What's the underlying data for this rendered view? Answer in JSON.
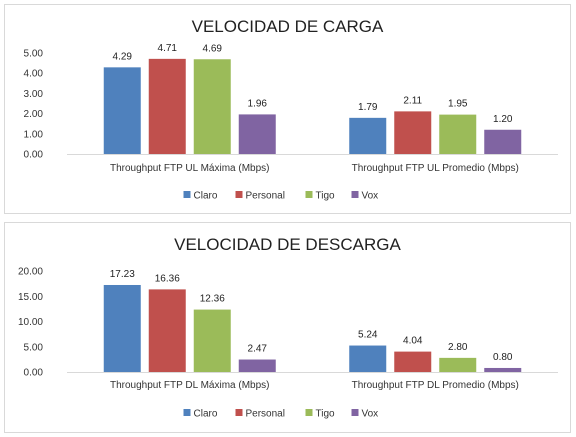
{
  "chart_data": [
    {
      "type": "bar",
      "title": "VELOCIDAD DE CARGA",
      "categories": [
        "Throughput FTP UL Máxima (Mbps)",
        "Throughput FTP UL Promedio (Mbps)"
      ],
      "series": [
        {
          "name": "Claro",
          "color": "#4F81BD",
          "values": [
            4.29,
            1.79
          ],
          "labels": [
            "4.29",
            "1.79"
          ]
        },
        {
          "name": "Personal",
          "color": "#C0504D",
          "values": [
            4.71,
            2.11
          ],
          "labels": [
            "4.71",
            "2.11"
          ]
        },
        {
          "name": "Tigo",
          "color": "#9BBB59",
          "values": [
            4.69,
            1.95
          ],
          "labels": [
            "4.69",
            "1.95"
          ]
        },
        {
          "name": "Vox",
          "color": "#8064A2",
          "values": [
            1.96,
            1.2
          ],
          "labels": [
            "1.96",
            "1.20"
          ]
        }
      ],
      "ylim": [
        0,
        5
      ],
      "yticks": [
        "0.00",
        "1.00",
        "2.00",
        "3.00",
        "4.00",
        "5.00"
      ],
      "grid": false,
      "legend": "bottom"
    },
    {
      "type": "bar",
      "title": "VELOCIDAD DE DESCARGA",
      "categories": [
        "Throughput FTP DL Máxima (Mbps)",
        "Throughput FTP DL Promedio (Mbps)"
      ],
      "series": [
        {
          "name": "Claro",
          "color": "#4F81BD",
          "values": [
            17.23,
            5.24
          ],
          "labels": [
            "17.23",
            "5.24"
          ]
        },
        {
          "name": "Personal",
          "color": "#C0504D",
          "values": [
            16.36,
            4.04
          ],
          "labels": [
            "16.36",
            "4.04"
          ]
        },
        {
          "name": "Tigo",
          "color": "#9BBB59",
          "values": [
            12.36,
            2.8
          ],
          "labels": [
            "12.36",
            "2.80"
          ]
        },
        {
          "name": "Vox",
          "color": "#8064A2",
          "values": [
            2.47,
            0.8
          ],
          "labels": [
            "2.47",
            "0.80"
          ]
        }
      ],
      "ylim": [
        0,
        20
      ],
      "yticks": [
        "0.00",
        "5.00",
        "10.00",
        "15.00",
        "20.00"
      ],
      "grid": false,
      "legend": "bottom"
    }
  ]
}
